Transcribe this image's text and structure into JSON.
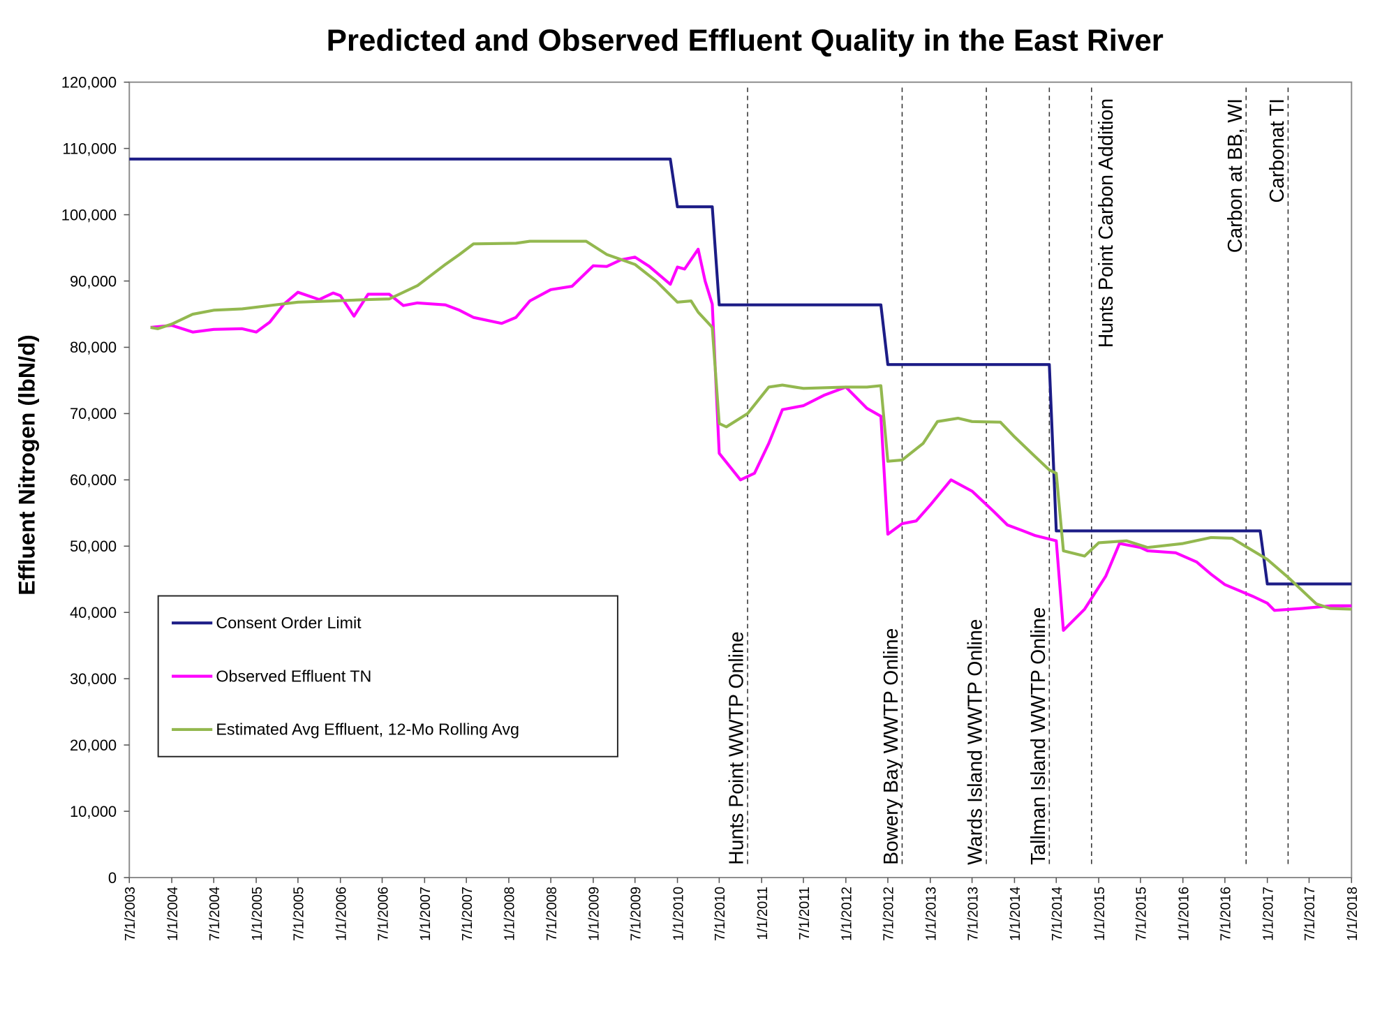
{
  "chart_data": {
    "type": "line",
    "title": "Predicted and Observed Effluent Quality in the East River",
    "y_label": "Effluent Nitrogen (lbN/d)",
    "xlim": [
      "7/1/2003",
      "1/1/2018"
    ],
    "xticks": [
      "7/1/2003",
      "1/1/2004",
      "7/1/2004",
      "1/1/2005",
      "7/1/2005",
      "1/1/2006",
      "7/1/2006",
      "1/1/2007",
      "7/1/2007",
      "1/1/2008",
      "7/1/2008",
      "1/1/2009",
      "7/1/2009",
      "1/1/2010",
      "7/1/2010",
      "1/1/2011",
      "7/1/2011",
      "1/1/2012",
      "7/1/2012",
      "1/1/2013",
      "7/1/2013",
      "1/1/2014",
      "7/1/2014",
      "1/1/2015",
      "7/1/2015",
      "1/1/2016",
      "7/1/2016",
      "1/1/2017",
      "7/1/2017",
      "1/1/2018"
    ],
    "ylim": [
      0,
      120000
    ],
    "yticks": [
      0,
      {
        "value": 10000,
        "label": "10,000"
      },
      {
        "value": 20000,
        "label": "20,000"
      },
      {
        "value": 30000,
        "label": "30,000"
      },
      {
        "value": 40000,
        "label": "40,000"
      },
      {
        "value": 50000,
        "label": "50,000"
      },
      {
        "value": 60000,
        "label": "60,000"
      },
      {
        "value": 70000,
        "label": "70,000"
      },
      {
        "value": 80000,
        "label": "80,000"
      },
      {
        "value": 90000,
        "label": "90,000"
      },
      {
        "value": 100000,
        "label": "100,000"
      },
      {
        "value": 110000,
        "label": "110,000"
      },
      {
        "value": 120000,
        "label": "120,000"
      }
    ],
    "grid": false,
    "legend": "left",
    "series": [
      {
        "name": "Consent Order Limit",
        "color": "#1c1c86",
        "x": [
          "7/1/2003",
          "12/1/2009",
          "1/1/2010",
          "6/1/2010",
          "7/1/2010",
          "6/1/2012",
          "7/1/2012",
          "6/1/2014",
          "7/1/2014",
          "12/1/2016",
          "1/1/2017",
          "1/1/2018"
        ],
        "values": [
          108400,
          108400,
          101200,
          101200,
          86400,
          86400,
          77400,
          77400,
          52300,
          52300,
          44300,
          44300
        ]
      },
      {
        "name": "Observed Effluent TN",
        "color": "#ff00ff",
        "x": [
          "10/1/2003",
          "1/1/2004",
          "4/1/2004",
          "7/1/2004",
          "11/1/2004",
          "1/1/2005",
          "3/1/2005",
          "5/1/2005",
          "7/1/2005",
          "10/1/2005",
          "12/1/2005",
          "1/1/2006",
          "3/1/2006",
          "5/1/2006",
          "8/1/2006",
          "10/1/2006",
          "12/1/2006",
          "4/1/2007",
          "6/1/2007",
          "8/1/2007",
          "12/1/2007",
          "2/1/2008",
          "4/1/2008",
          "7/1/2008",
          "10/1/2008",
          "1/1/2009",
          "3/1/2009",
          "5/1/2009",
          "7/1/2009",
          "9/1/2009",
          "12/1/2009",
          "1/1/2010",
          "2/1/2010",
          "4/1/2010",
          "5/1/2010",
          "6/1/2010",
          "7/1/2010",
          "10/1/2010",
          "12/1/2010",
          "2/1/2011",
          "4/1/2011",
          "7/1/2011",
          "10/1/2011",
          "1/1/2012",
          "4/1/2012",
          "6/1/2012",
          "7/1/2012",
          "9/1/2012",
          "11/1/2012",
          "1/1/2013",
          "4/1/2013",
          "7/1/2013",
          "10/1/2013",
          "12/1/2013",
          "2/1/2014",
          "4/1/2014",
          "7/1/2014",
          "8/1/2014",
          "11/1/2014",
          "2/1/2015",
          "4/1/2015",
          "7/1/2015",
          "8/1/2015",
          "12/1/2015",
          "3/1/2016",
          "5/1/2016",
          "7/1/2016",
          "11/1/2016",
          "1/1/2017",
          "2/1/2017",
          "6/1/2017",
          "10/1/2017",
          "1/1/2018"
        ],
        "values": [
          83000,
          83300,
          82300,
          82700,
          82800,
          82300,
          83800,
          86500,
          88300,
          87200,
          88200,
          87800,
          84700,
          88000,
          88000,
          86300,
          86700,
          86400,
          85600,
          84500,
          83600,
          84500,
          87000,
          88700,
          89200,
          92300,
          92200,
          93200,
          93600,
          92200,
          89500,
          92100,
          91800,
          94800,
          90000,
          86500,
          64000,
          60000,
          61000,
          65500,
          70600,
          71200,
          72800,
          74000,
          70800,
          69600,
          51800,
          53400,
          53800,
          56200,
          60000,
          58300,
          55300,
          53200,
          52400,
          51600,
          50800,
          37300,
          40500,
          45500,
          50400,
          49800,
          49300,
          49000,
          47600,
          45800,
          44200,
          42400,
          41400,
          40300,
          40600,
          41000,
          41000
        ]
      },
      {
        "name": "Estimated Avg Effluent, 12-Mo Rolling Avg",
        "color": "#93b84f",
        "x": [
          "10/1/2003",
          "11/1/2003",
          "1/1/2004",
          "4/1/2004",
          "7/1/2004",
          "11/1/2004",
          "3/1/2005",
          "7/1/2005",
          "12/1/2005",
          "5/1/2006",
          "8/1/2006",
          "12/1/2006",
          "4/1/2007",
          "6/1/2007",
          "8/1/2007",
          "2/1/2008",
          "4/1/2008",
          "12/1/2008",
          "3/1/2009",
          "7/1/2009",
          "10/1/2009",
          "1/1/2010",
          "3/1/2010",
          "4/1/2010",
          "6/1/2010",
          "7/1/2010",
          "8/1/2010",
          "11/1/2010",
          "2/1/2011",
          "4/1/2011",
          "7/1/2011",
          "1/1/2012",
          "4/1/2012",
          "6/1/2012",
          "7/1/2012",
          "9/1/2012",
          "12/1/2012",
          "2/1/2013",
          "5/1/2013",
          "7/1/2013",
          "11/1/2013",
          "1/1/2014",
          "4/1/2014",
          "6/1/2014",
          "7/1/2014",
          "8/1/2014",
          "11/1/2014",
          "1/1/2015",
          "5/1/2015",
          "8/1/2015",
          "1/1/2016",
          "5/1/2016",
          "8/1/2016",
          "1/1/2017",
          "4/1/2017",
          "8/1/2017",
          "10/1/2017",
          "1/1/2018"
        ],
        "values": [
          83000,
          82800,
          83500,
          85000,
          85600,
          85800,
          86300,
          86800,
          87000,
          87200,
          87300,
          89300,
          92500,
          94000,
          95600,
          95700,
          96000,
          96000,
          94000,
          92500,
          90000,
          86800,
          87000,
          85300,
          83000,
          68500,
          68000,
          70000,
          74000,
          74300,
          73800,
          74000,
          74000,
          74200,
          62800,
          63000,
          65500,
          68800,
          69300,
          68800,
          68700,
          66500,
          63500,
          61500,
          61000,
          49300,
          48500,
          50500,
          50800,
          49800,
          50400,
          51300,
          51200,
          48000,
          45300,
          41300,
          40600,
          40500
        ]
      }
    ],
    "annotations": [
      {
        "x": "11/1/2010",
        "text": "Hunts Point WWTP Online"
      },
      {
        "x": "9/1/2012",
        "text": "Bowery Bay WWTP Online"
      },
      {
        "x": "9/1/2013",
        "text": "Wards  Island WWTP Online"
      },
      {
        "x": "6/1/2014",
        "text": "Tallman Island WWTP Online"
      },
      {
        "x": "12/1/2014",
        "text": "Hunts Point Carbon Addition"
      },
      {
        "x": "10/1/2016",
        "text": "Carbon at BB, WI"
      },
      {
        "x": "4/1/2017",
        "text": "Carbonat TI"
      }
    ]
  }
}
